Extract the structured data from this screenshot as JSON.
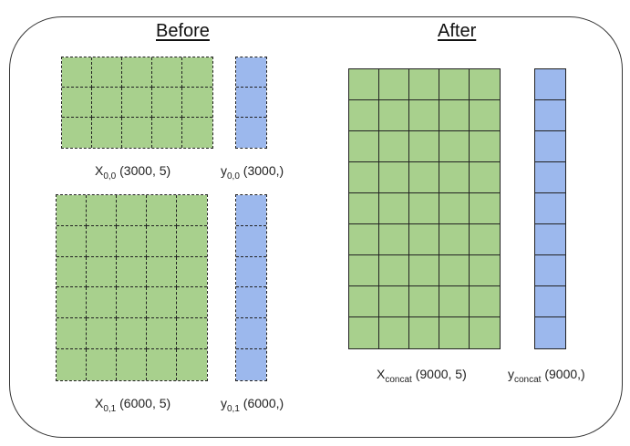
{
  "headings": {
    "before": "Before",
    "after": "After"
  },
  "before": {
    "x00": {
      "name": "X",
      "sub": "0,0",
      "shape": "(3000, 5)",
      "rows": 3,
      "cols": 5
    },
    "y00": {
      "name": "y",
      "sub": "0,0",
      "shape": "(3000,)",
      "rows": 3,
      "cols": 1
    },
    "x01": {
      "name": "X",
      "sub": "0,1",
      "shape": "(6000, 5)",
      "rows": 6,
      "cols": 5
    },
    "y01": {
      "name": "y",
      "sub": "0,1",
      "shape": "(6000,)",
      "rows": 6,
      "cols": 1
    }
  },
  "after": {
    "x": {
      "name": "X",
      "sub": "concat",
      "shape": "(9000, 5)",
      "rows": 9,
      "cols": 5
    },
    "y": {
      "name": "y",
      "sub": "concat",
      "shape": "(9000,)",
      "rows": 9,
      "cols": 1
    }
  },
  "colors": {
    "x_fill": "#a8d08d",
    "y_fill": "#9cb8ed",
    "border": "#222222"
  }
}
